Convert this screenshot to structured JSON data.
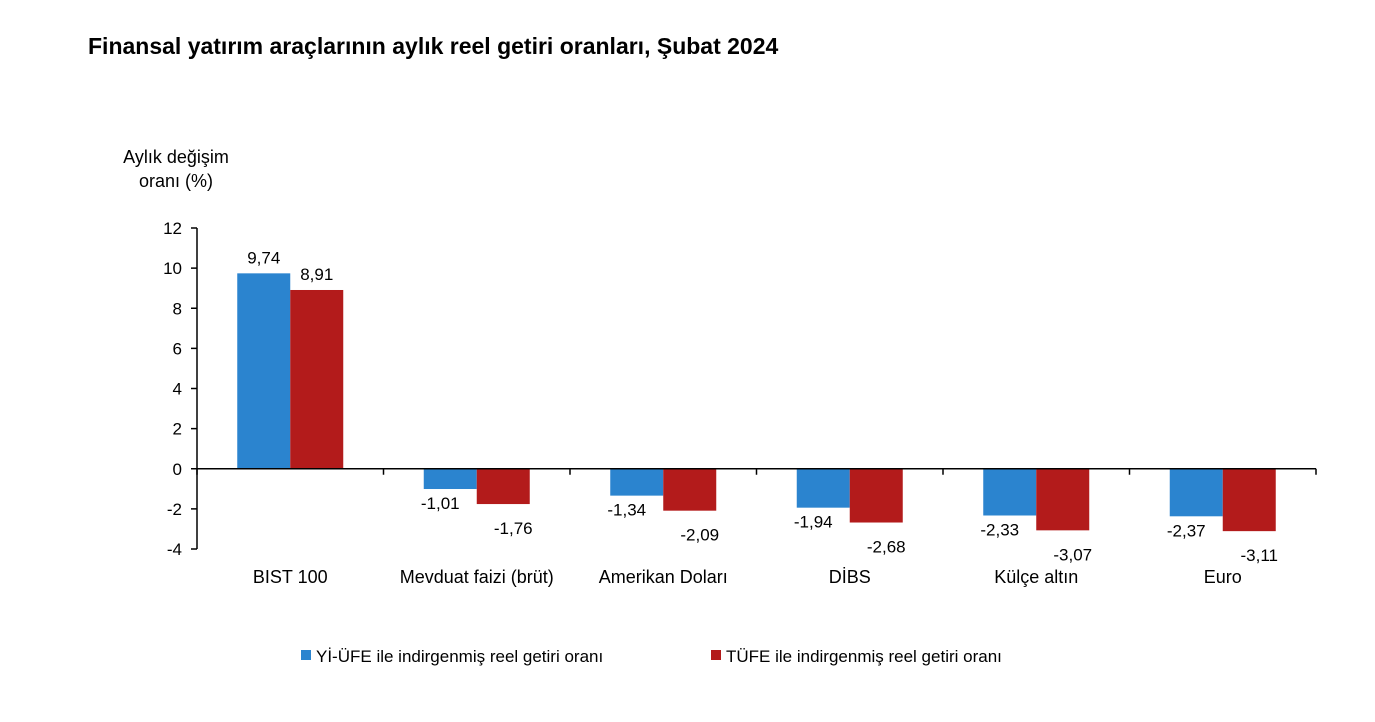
{
  "page": {
    "title": "Finansal yatırım araçlarının aylık reel getiri oranları, Şubat 2024"
  },
  "chart_data": {
    "type": "bar",
    "title": "Finansal yatırım araçlarının aylık reel getiri oranları, Şubat 2024",
    "ylabel_lines": [
      "Aylık değişim",
      "oranı (%)"
    ],
    "xlabel": "",
    "categories": [
      "BIST 100",
      "Mevduat faizi (brüt)",
      "Amerikan Doları",
      "DİBS",
      "Külçe altın",
      "Euro"
    ],
    "series": [
      {
        "name": "Yİ-ÜFE ile indirgenmiş reel getiri oranı",
        "color": "#2B84CF",
        "values": [
          9.74,
          -1.01,
          -1.34,
          -1.94,
          -2.33,
          -2.37
        ],
        "labels": [
          "9,74",
          "-1,01",
          "-1,34",
          "-1,94",
          "-2,33",
          "-2,37"
        ]
      },
      {
        "name": "TÜFE ile indirgenmiş reel getiri oranı",
        "color": "#B31B1B",
        "values": [
          8.91,
          -1.76,
          -2.09,
          -2.68,
          -3.07,
          -3.11
        ],
        "labels": [
          "8,91",
          "-1,76",
          "-2,09",
          "-2,68",
          "-3,07",
          "-3,11"
        ]
      }
    ],
    "ylim": [
      -4,
      12
    ],
    "yticks": [
      12,
      10,
      8,
      6,
      4,
      2,
      0,
      -2,
      -4
    ],
    "grid": false,
    "legend_position": "bottom"
  }
}
